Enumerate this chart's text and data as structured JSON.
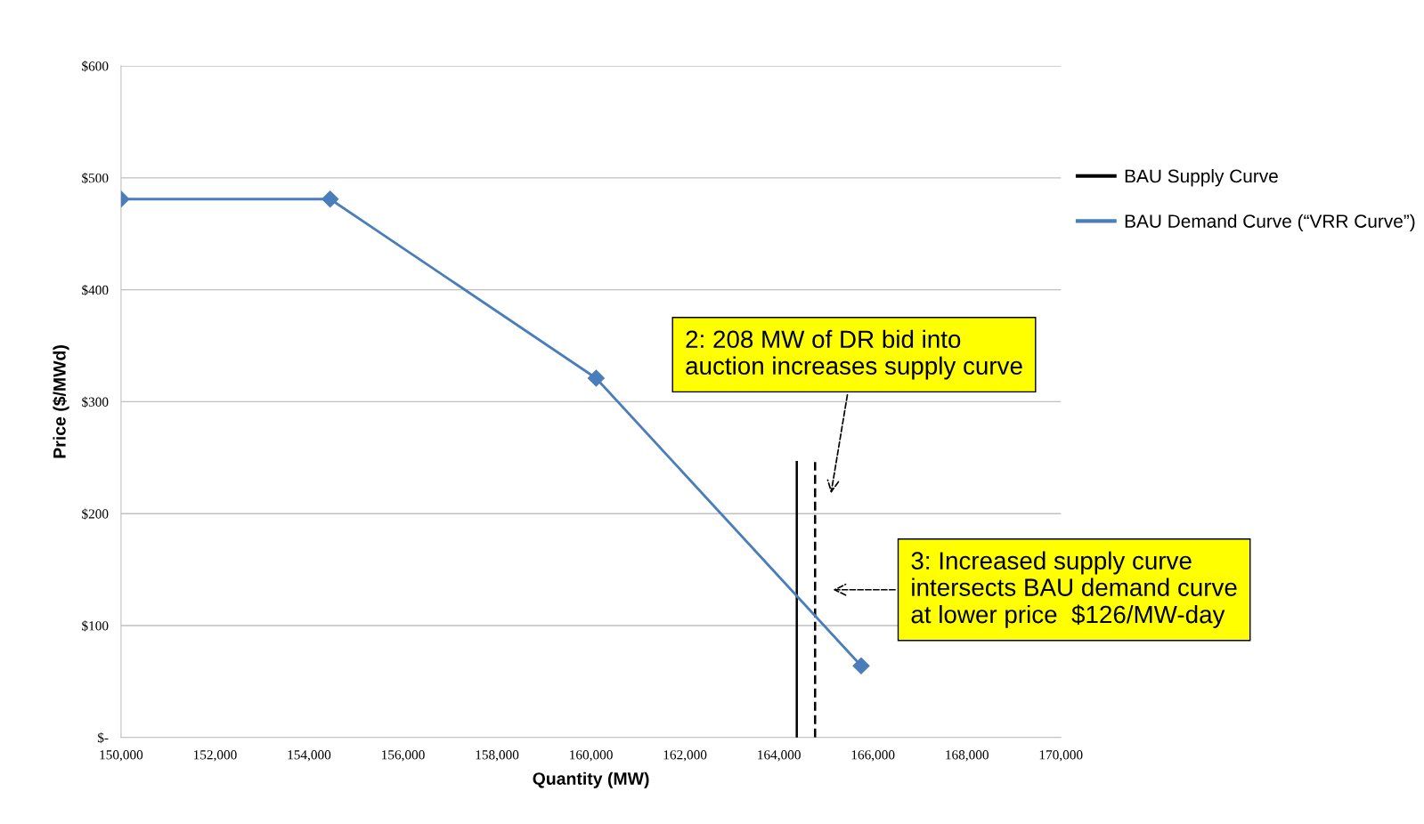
{
  "chart_data": {
    "type": "line",
    "xlabel": "Quantity (MW)",
    "ylabel": "Price ($/MWd)",
    "xlim": [
      150000,
      170000
    ],
    "xticks": [
      {
        "value": 150000,
        "label": "150,000"
      },
      {
        "value": 152000,
        "label": "152,000"
      },
      {
        "value": 154000,
        "label": "154,000"
      },
      {
        "value": 156000,
        "label": "156,000"
      },
      {
        "value": 158000,
        "label": "158,000"
      },
      {
        "value": 160000,
        "label": "160,000"
      },
      {
        "value": 162000,
        "label": "162,000"
      },
      {
        "value": 164000,
        "label": "164,000"
      },
      {
        "value": 166000,
        "label": "166,000"
      },
      {
        "value": 168000,
        "label": "168,000"
      },
      {
        "value": 170000,
        "label": "170,000"
      }
    ],
    "ylim": [
      0,
      600
    ],
    "yticks": [
      {
        "value": 0,
        "label": "$-"
      },
      {
        "value": 100,
        "label": "$100"
      },
      {
        "value": 200,
        "label": "$200"
      },
      {
        "value": 300,
        "label": "$300"
      },
      {
        "value": 400,
        "label": "$400"
      },
      {
        "value": 500,
        "label": "$500"
      },
      {
        "value": 600,
        "label": "$600"
      }
    ],
    "grid": "y",
    "legend": "right",
    "series": [
      {
        "name": "BAU Supply Curve",
        "color": "#000000",
        "x": [
          164380,
          164380
        ],
        "values": [
          0,
          246
        ],
        "marker": "none",
        "line_style": "solid"
      },
      {
        "color": "#000000",
        "x": [
          164770,
          164770
        ],
        "values": [
          0,
          246
        ],
        "marker": "none",
        "line_style": "dashed"
      },
      {
        "name": "BAU Demand Curve (“VRR Curve”)",
        "color": "#4a7ebb",
        "x": [
          150000,
          154450,
          160110,
          165750
        ],
        "values": [
          481,
          481,
          321,
          64
        ],
        "marker": "diamond",
        "line_style": "solid"
      }
    ],
    "annotations": [
      "2: 208 MW of DR bid into\nauction increases supply curve",
      "3: Increased supply curve\nintersects BAU demand curve\nat lower price  $126/MW-day"
    ]
  }
}
